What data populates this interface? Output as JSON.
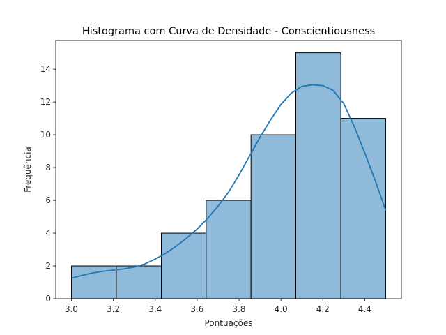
{
  "chart_data": {
    "type": "bar",
    "title": "Histograma com Curva de Densidade - Conscientiousness",
    "xlabel": "Pontuações",
    "ylabel": "Frequência",
    "xlim": [
      2.925,
      4.575
    ],
    "ylim": [
      0,
      15.75
    ],
    "xticks": [
      3.0,
      3.2,
      3.4,
      3.6,
      3.8,
      4.0,
      4.2,
      4.4
    ],
    "yticks": [
      0,
      2,
      4,
      6,
      8,
      10,
      12,
      14
    ],
    "bins": [
      {
        "start": 3.0,
        "end": 3.214,
        "count": 2
      },
      {
        "start": 3.214,
        "end": 3.429,
        "count": 2
      },
      {
        "start": 3.429,
        "end": 3.643,
        "count": 4
      },
      {
        "start": 3.643,
        "end": 3.857,
        "count": 6
      },
      {
        "start": 3.857,
        "end": 4.071,
        "count": 10
      },
      {
        "start": 4.071,
        "end": 4.286,
        "count": 15
      },
      {
        "start": 4.286,
        "end": 4.5,
        "count": 11
      }
    ],
    "density_curve": {
      "x": [
        3.0,
        3.05,
        3.1,
        3.15,
        3.2,
        3.25,
        3.3,
        3.35,
        3.4,
        3.45,
        3.5,
        3.55,
        3.6,
        3.65,
        3.7,
        3.75,
        3.8,
        3.85,
        3.9,
        3.95,
        4.0,
        4.05,
        4.1,
        4.15,
        4.2,
        4.25,
        4.3,
        4.35,
        4.4,
        4.45,
        4.5
      ],
      "y": [
        1.25,
        1.42,
        1.57,
        1.67,
        1.74,
        1.82,
        1.93,
        2.12,
        2.42,
        2.77,
        3.2,
        3.7,
        4.25,
        4.9,
        5.65,
        6.5,
        7.55,
        8.7,
        9.85,
        10.9,
        11.85,
        12.55,
        12.95,
        13.05,
        13.0,
        12.7,
        11.9,
        10.5,
        8.9,
        7.2,
        5.4
      ]
    },
    "colors": {
      "bar_fill": "#8fbad9",
      "bar_edge": "#000000",
      "curve": "#1f77b4"
    },
    "grid": false,
    "legend": "none"
  }
}
